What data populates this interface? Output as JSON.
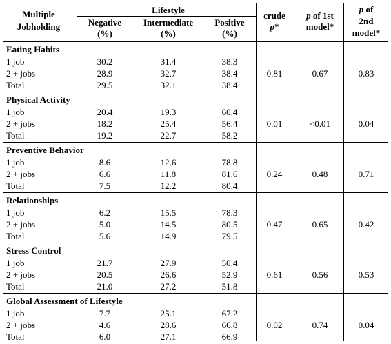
{
  "header": {
    "group_line1": "Multiple",
    "group_line2": "Jobholding",
    "lifestyle": "Lifestyle",
    "negative_line1": "Negative",
    "negative_line2": "(%)",
    "intermediate_line1": "Intermediate",
    "intermediate_line2": "(%)",
    "positive_line1": "Positive",
    "positive_line2": "(%)",
    "crude_line1": "crude",
    "crude_p": "p",
    "crude_star": "*",
    "p1_p": "p",
    "p1_rest": " of 1st",
    "p1_line2": "model*",
    "p2_p": "p",
    "p2_rest": " of",
    "p2_line2": "2nd",
    "p2_line3": "model*"
  },
  "sections": [
    {
      "title": "Eating Habits",
      "rows": [
        {
          "label": "1 job",
          "neg": "30.2",
          "int": "31.4",
          "pos": "38.3"
        },
        {
          "label": "2 + jobs",
          "neg": "28.9",
          "int": "32.7",
          "pos": "38.4"
        },
        {
          "label": "Total",
          "neg": "29.5",
          "int": "32.1",
          "pos": "38.4"
        }
      ],
      "crude_p": "0.81",
      "p_model1": "0.67",
      "p_model2": "0.83"
    },
    {
      "title": "Physical Activity",
      "rows": [
        {
          "label": "1 job",
          "neg": "20.4",
          "int": "19.3",
          "pos": "60.4"
        },
        {
          "label": "2 + jobs",
          "neg": "18.2",
          "int": "25.4",
          "pos": "56.4"
        },
        {
          "label": "Total",
          "neg": "19.2",
          "int": "22.7",
          "pos": "58.2"
        }
      ],
      "crude_p": "0.01",
      "p_model1": "<0.01",
      "p_model2": "0.04"
    },
    {
      "title": "Preventive Behavior",
      "rows": [
        {
          "label": "1 job",
          "neg": "8.6",
          "int": "12.6",
          "pos": "78.8"
        },
        {
          "label": "2 + jobs",
          "neg": "6.6",
          "int": "11.8",
          "pos": "81.6"
        },
        {
          "label": "Total",
          "neg": "7.5",
          "int": "12.2",
          "pos": "80.4"
        }
      ],
      "crude_p": "0.24",
      "p_model1": "0.48",
      "p_model2": "0.71"
    },
    {
      "title": "Relationships",
      "rows": [
        {
          "label": "1 job",
          "neg": "6.2",
          "int": "15.5",
          "pos": "78.3"
        },
        {
          "label": "2 + jobs",
          "neg": "5.0",
          "int": "14.5",
          "pos": "80.5"
        },
        {
          "label": "Total",
          "neg": "5.6",
          "int": "14.9",
          "pos": "79.5"
        }
      ],
      "crude_p": "0.47",
      "p_model1": "0.65",
      "p_model2": "0.42"
    },
    {
      "title": "Stress Control",
      "rows": [
        {
          "label": "1 job",
          "neg": "21.7",
          "int": "27.9",
          "pos": "50.4"
        },
        {
          "label": "2 + jobs",
          "neg": "20.5",
          "int": "26.6",
          "pos": "52.9"
        },
        {
          "label": "Total",
          "neg": "21.0",
          "int": "27.2",
          "pos": "51.8"
        }
      ],
      "crude_p": "0.61",
      "p_model1": "0.56",
      "p_model2": "0.53"
    },
    {
      "title": "Global Assessment of Lifestyle",
      "rows": [
        {
          "label": "1 job",
          "neg": "7.7",
          "int": "25.1",
          "pos": "67.2"
        },
        {
          "label": "2 + jobs",
          "neg": "4.6",
          "int": "28.6",
          "pos": "66.8"
        },
        {
          "label": "Total",
          "neg": "6.0",
          "int": "27.1",
          "pos": "66.9"
        }
      ],
      "crude_p": "0.02",
      "p_model1": "0.74",
      "p_model2": "0.04"
    }
  ]
}
